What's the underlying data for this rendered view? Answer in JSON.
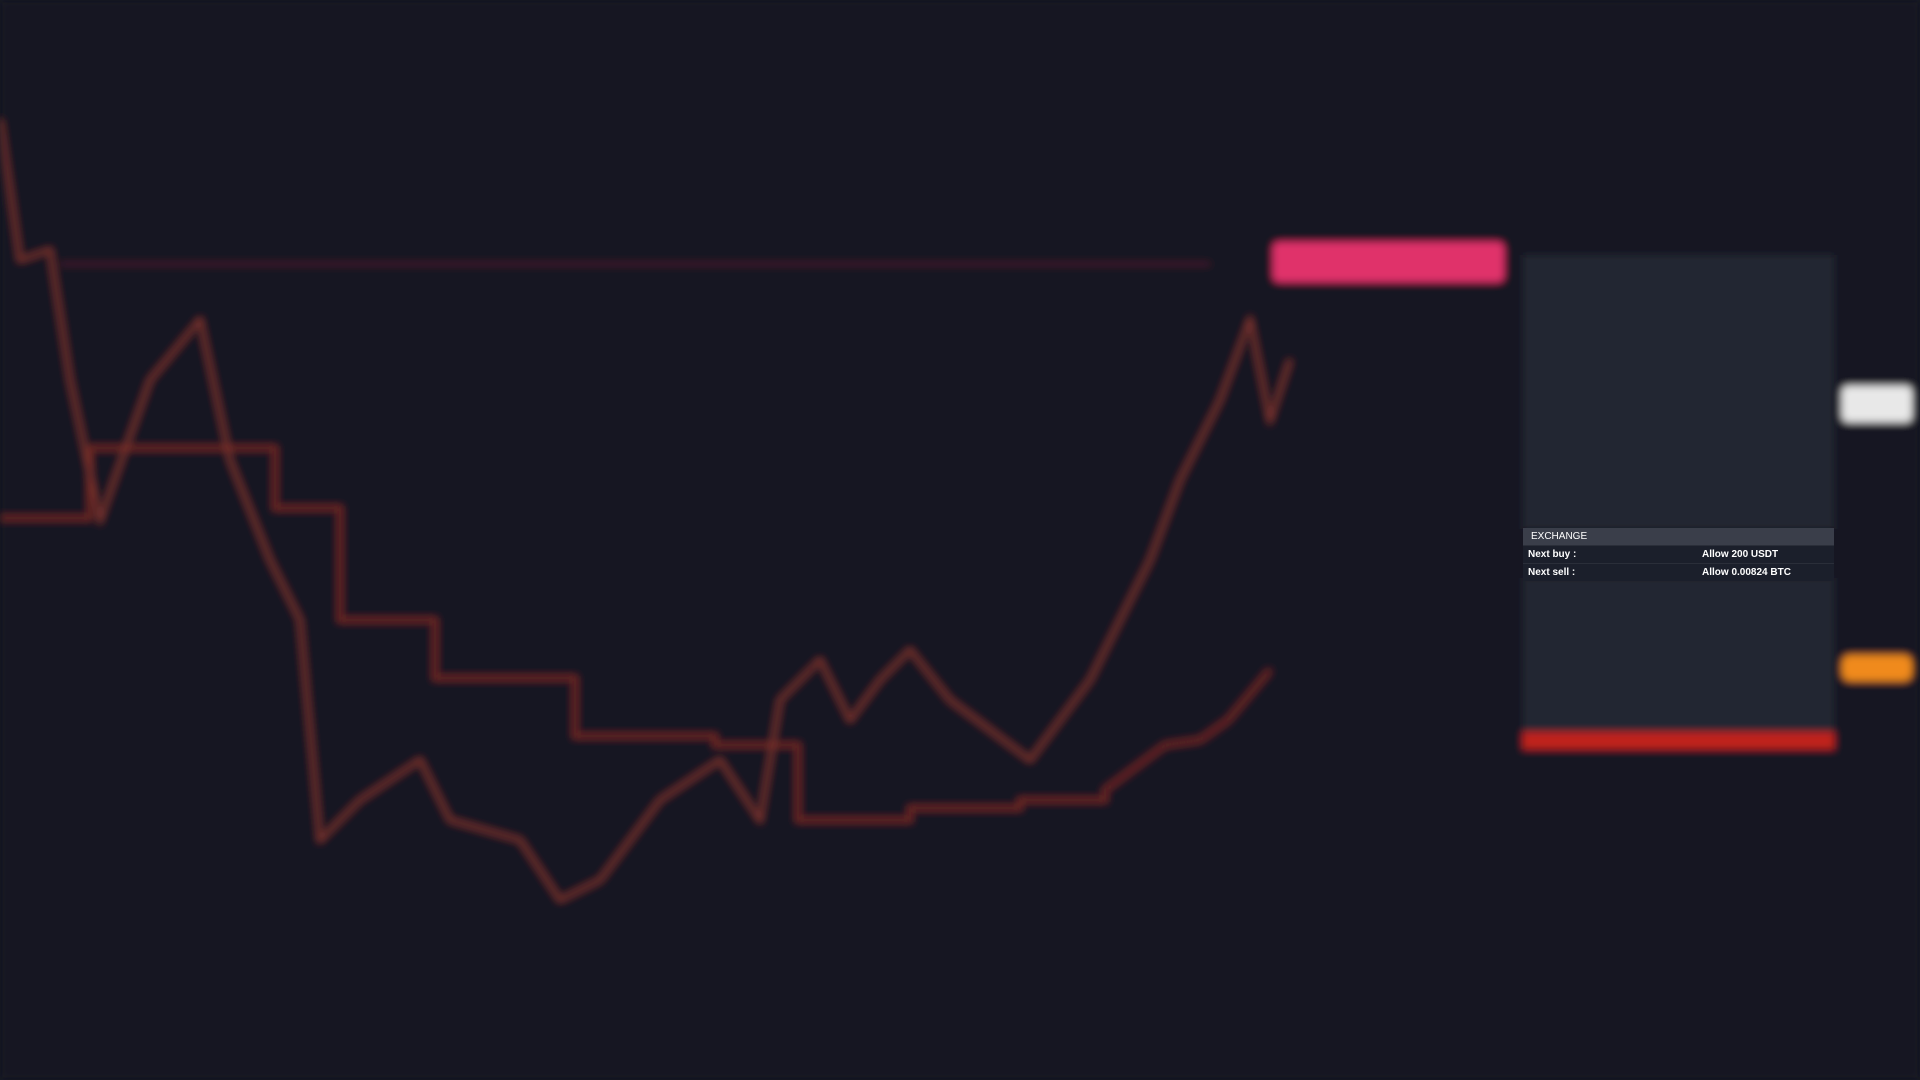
{
  "exchange": {
    "title": "EXCHANGE",
    "rows": [
      [
        "Next buy :",
        "Allow 200 USDT"
      ],
      [
        "Next sell :",
        "Allow 0.00824 BTC"
      ]
    ]
  }
}
